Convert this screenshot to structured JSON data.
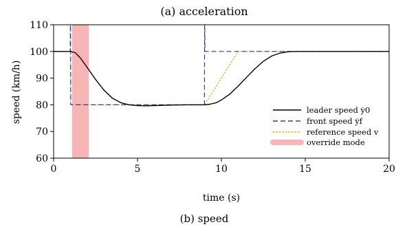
{
  "chart_data": {
    "type": "line",
    "title": "(a) acceleration",
    "caption": "(b) speed",
    "xlabel": "time (s)",
    "ylabel": "speed (km/h)",
    "xlim": [
      0,
      20
    ],
    "ylim": [
      60,
      110
    ],
    "xticks": [
      0,
      5,
      10,
      15,
      20
    ],
    "yticks": [
      60,
      70,
      80,
      90,
      100,
      110
    ],
    "grid": false,
    "legend_position": "lower-right",
    "series": [
      {
        "name": "leader speed ẏ0",
        "style": "solid",
        "color": "#000000",
        "x": [
          0,
          1.0,
          1.3,
          1.6,
          2.0,
          2.5,
          3.0,
          3.5,
          4.0,
          4.5,
          5.0,
          5.5,
          6.0,
          7.0,
          8.0,
          9.0,
          9.3,
          9.7,
          10.0,
          10.5,
          11.0,
          11.5,
          12.0,
          12.5,
          13.0,
          13.5,
          14.0,
          14.5,
          15.0,
          17.0,
          20.0
        ],
        "y": [
          100,
          100,
          99.5,
          97.5,
          94,
          89.5,
          85.5,
          82.5,
          80.8,
          80.0,
          79.7,
          79.6,
          79.7,
          79.9,
          80,
          80,
          80.2,
          80.8,
          81.8,
          84,
          87,
          90.3,
          93.5,
          96.3,
          98.3,
          99.4,
          99.9,
          100,
          100,
          100,
          100
        ]
      },
      {
        "name": "front speed ẏf",
        "style": "dashed",
        "color": "#2a3f8f",
        "x": [
          0,
          0.99,
          1.0,
          1.01,
          1.02,
          8.99,
          9.0,
          9.01,
          9.02,
          20
        ],
        "y": [
          100,
          100,
          110,
          110,
          80,
          80,
          110,
          110,
          100,
          100
        ]
      },
      {
        "name": "reference speed v",
        "style": "dotted",
        "color": "#f0a500",
        "x": [
          0,
          1.0,
          1.02,
          9.0,
          11.0,
          20
        ],
        "y": [
          100,
          100,
          80,
          80,
          100,
          100
        ]
      }
    ],
    "regions": [
      {
        "name": "override mode",
        "x0": 1.1,
        "x1": 2.1,
        "color": "#f7b5b5"
      }
    ]
  }
}
